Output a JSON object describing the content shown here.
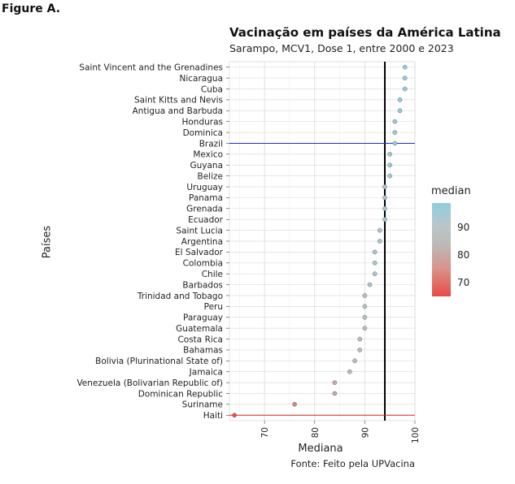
{
  "figure_label": "Figure A.",
  "legend": {
    "title": "median",
    "ticks": [
      "90",
      "80",
      "70"
    ]
  },
  "colors": {
    "high": "#8ecfe0",
    "mid": "#bdbdbd",
    "low": "#e84b45",
    "brazil_line": "#1f2bd6",
    "haiti_line": "#d62020",
    "reference_line": "#000000"
  },
  "chart_data": {
    "type": "scatter",
    "title": "Vacinação em países da América Latina",
    "subtitle": "Sarampo, MCV1, Dose 1, entre 2000 e 2023",
    "xlabel": "Mediana",
    "ylabel": "Países",
    "caption": "Fonte: Feito pela UPVacina",
    "xlim": [
      63,
      100
    ],
    "xticks": [
      70,
      80,
      90,
      100
    ],
    "grid": true,
    "reference_x": 94,
    "highlight_rows": [
      "Brazil",
      "Haiti"
    ],
    "categories": [
      "Saint Vincent and the Grenadines",
      "Nicaragua",
      "Cuba",
      "Saint Kitts and Nevis",
      "Antigua and Barbuda",
      "Honduras",
      "Dominica",
      "Brazil",
      "Mexico",
      "Guyana",
      "Belize",
      "Uruguay",
      "Panama",
      "Grenada",
      "Ecuador",
      "Saint Lucia",
      "Argentina",
      "El Salvador",
      "Colombia",
      "Chile",
      "Barbados",
      "Trinidad and Tobago",
      "Peru",
      "Paraguay",
      "Guatemala",
      "Costa Rica",
      "Bahamas",
      "Bolivia (Plurinational State of)",
      "Jamaica",
      "Venezuela (Bolivarian Republic of)",
      "Dominican Republic",
      "Suriname",
      "Haiti"
    ],
    "values": [
      98,
      98,
      98,
      97,
      97,
      96,
      96,
      96,
      95,
      95,
      95,
      94,
      94,
      94,
      94,
      93,
      93,
      92,
      92,
      92,
      91,
      90,
      90,
      90,
      90,
      89,
      89,
      88,
      87,
      84,
      84,
      76,
      64
    ]
  }
}
